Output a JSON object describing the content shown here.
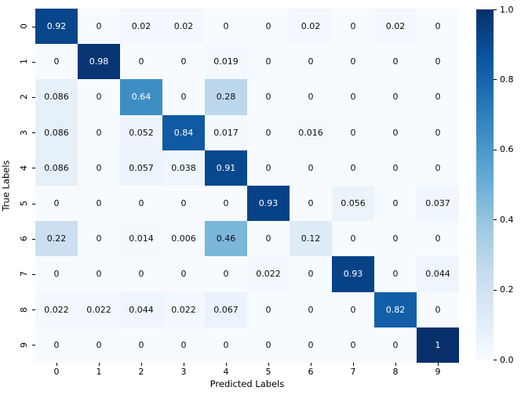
{
  "chart_data": {
    "type": "heatmap",
    "title": "",
    "xlabel": "Predicted Labels",
    "ylabel": "True Labels",
    "x_tick_labels": [
      "0",
      "1",
      "2",
      "3",
      "4",
      "5",
      "6",
      "7",
      "8",
      "9"
    ],
    "y_tick_labels": [
      "0",
      "1",
      "2",
      "3",
      "4",
      "5",
      "6",
      "7",
      "8",
      "9"
    ],
    "value_range": [
      0,
      1
    ],
    "grid": false,
    "matrix": [
      [
        0.92,
        0,
        0.02,
        0.02,
        0,
        0,
        0.02,
        0,
        0.02,
        0
      ],
      [
        0,
        0.98,
        0,
        0,
        0.019,
        0,
        0,
        0,
        0,
        0
      ],
      [
        0.086,
        0,
        0.64,
        0,
        0.28,
        0,
        0,
        0,
        0,
        0
      ],
      [
        0.086,
        0,
        0.052,
        0.84,
        0.017,
        0,
        0.016,
        0,
        0,
        0
      ],
      [
        0.086,
        0,
        0.057,
        0.038,
        0.91,
        0,
        0,
        0,
        0,
        0
      ],
      [
        0,
        0,
        0,
        0,
        0,
        0.93,
        0,
        0.056,
        0,
        0.037
      ],
      [
        0.22,
        0,
        0.014,
        0.006,
        0.46,
        0,
        0.12,
        0,
        0,
        0
      ],
      [
        0,
        0,
        0,
        0,
        0,
        0.022,
        0,
        0.93,
        0,
        0.044
      ],
      [
        0.022,
        0.022,
        0.044,
        0.022,
        0.067,
        0,
        0,
        0,
        0.82,
        0
      ],
      [
        0,
        0,
        0,
        0,
        0,
        0,
        0,
        0,
        0,
        1
      ]
    ],
    "colormap": {
      "name": "Blues",
      "anchors": [
        {
          "pos": 0.0,
          "color": "#f7fbff"
        },
        {
          "pos": 0.125,
          "color": "#deebf7"
        },
        {
          "pos": 0.25,
          "color": "#c6dbef"
        },
        {
          "pos": 0.375,
          "color": "#9ecae1"
        },
        {
          "pos": 0.5,
          "color": "#6baed6"
        },
        {
          "pos": 0.625,
          "color": "#4292c6"
        },
        {
          "pos": 0.75,
          "color": "#2171b5"
        },
        {
          "pos": 0.875,
          "color": "#08519c"
        },
        {
          "pos": 1.0,
          "color": "#08306b"
        }
      ]
    },
    "colorbar": {
      "position": "right",
      "tick_labels": [
        "1.0",
        "0.8",
        "0.6",
        "0.4",
        "0.2",
        "0.0"
      ],
      "tick_values": [
        1.0,
        0.8,
        0.6,
        0.4,
        0.2,
        0.0
      ]
    },
    "annotation_colors": {
      "on_dark": "#ffffff",
      "on_light": "#0f0f0f"
    }
  }
}
